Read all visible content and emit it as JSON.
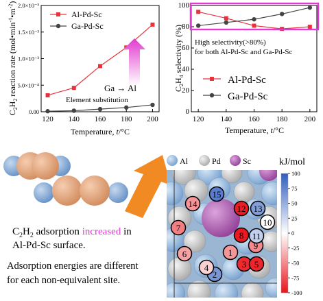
{
  "chart_data": [
    {
      "type": "line",
      "ylabel": "C2H2 reaction rate (mol·min⁻¹·m⁻²)",
      "xlabel": "Temperature, t/°C",
      "x": [
        120,
        140,
        160,
        180,
        200
      ],
      "xlim": [
        115,
        205
      ],
      "ylim": [
        0,
        0.002
      ],
      "y_ticks": [
        "0.00",
        "5.0×10⁻⁴",
        "1.0×10⁻³",
        "1.5×10⁻³",
        "2.0×10⁻³"
      ],
      "x_ticks": [
        "120",
        "140",
        "160",
        "180",
        "200"
      ],
      "legend": "top-left",
      "series": [
        {
          "name": "Al-Pd-Sc",
          "values": [
            0.00031,
            0.00045,
            0.00086,
            0.00121,
            0.00164
          ],
          "color": "#e8323c",
          "marker": "square"
        },
        {
          "name": "Ga-Pd-Sc",
          "values": [
            1e-05,
            2e-05,
            5e-05,
            8e-05,
            0.00013
          ],
          "color": "#444444",
          "marker": "circle"
        }
      ],
      "annotation": {
        "line1": "Ga → Al",
        "line2": "Element substitution",
        "arrow_color": "#e23ad0"
      }
    },
    {
      "type": "line",
      "ylabel": "C2H4 selectivity (%)",
      "xlabel": "Temperature, t/°C",
      "x": [
        120,
        140,
        160,
        180,
        200
      ],
      "xlim": [
        115,
        205
      ],
      "ylim": [
        0,
        100
      ],
      "y_ticks": [
        "0",
        "20",
        "40",
        "60",
        "80",
        "100"
      ],
      "x_ticks": [
        "120",
        "140",
        "160",
        "180",
        "200"
      ],
      "legend": "lower-right",
      "series": [
        {
          "name": "Al-Pd-Sc",
          "values": [
            94,
            88,
            81,
            78,
            80
          ],
          "color": "#e8323c",
          "marker": "square"
        },
        {
          "name": "Ga-Pd-Sc",
          "values": [
            81,
            84,
            87,
            92,
            98
          ],
          "color": "#444444",
          "marker": "circle"
        }
      ],
      "highlight": {
        "line1": "High  selectivity(>80%)",
        "line2": "for both Al-Pd-Sc and Ga-Pd-Sc",
        "color": "#e23ad0"
      }
    }
  ],
  "texts": {
    "adsorption_1": "adsorption",
    "increased": "increased",
    "in": "in",
    "surface": "Al-Pd-Sc surface.",
    "energies_1": "Adsorption energies are different",
    "energies_2": "for each non-equivalent site."
  },
  "structure_legend": {
    "al": "Al",
    "pd": "Pd",
    "sc": "Sc"
  },
  "colorbar": {
    "unit": "kJ/mol",
    "ticks": [
      "100",
      "75",
      "50",
      "25",
      "0",
      "-25",
      "-50",
      "-75",
      "-100"
    ]
  },
  "sites": [
    {
      "n": "1",
      "e": -45
    },
    {
      "n": "2",
      "e": 65
    },
    {
      "n": "3",
      "e": -90
    },
    {
      "n": "4",
      "e": -20
    },
    {
      "n": "5",
      "e": -92
    },
    {
      "n": "6",
      "e": -40
    },
    {
      "n": "7",
      "e": -55
    },
    {
      "n": "8",
      "e": -98
    },
    {
      "n": "9",
      "e": -50
    },
    {
      "n": "10",
      "e": 0
    },
    {
      "n": "11",
      "e": 30
    },
    {
      "n": "12",
      "e": -96
    },
    {
      "n": "13",
      "e": 60
    },
    {
      "n": "14",
      "e": -45
    },
    {
      "n": "15",
      "e": 80
    }
  ],
  "colors": {
    "al": "#8fb4db",
    "pd": "#c9c9c9",
    "sc": "#b05ab3",
    "c": "#e0a27c",
    "h": "#7fa6d4",
    "arrow": "#f28a23"
  }
}
